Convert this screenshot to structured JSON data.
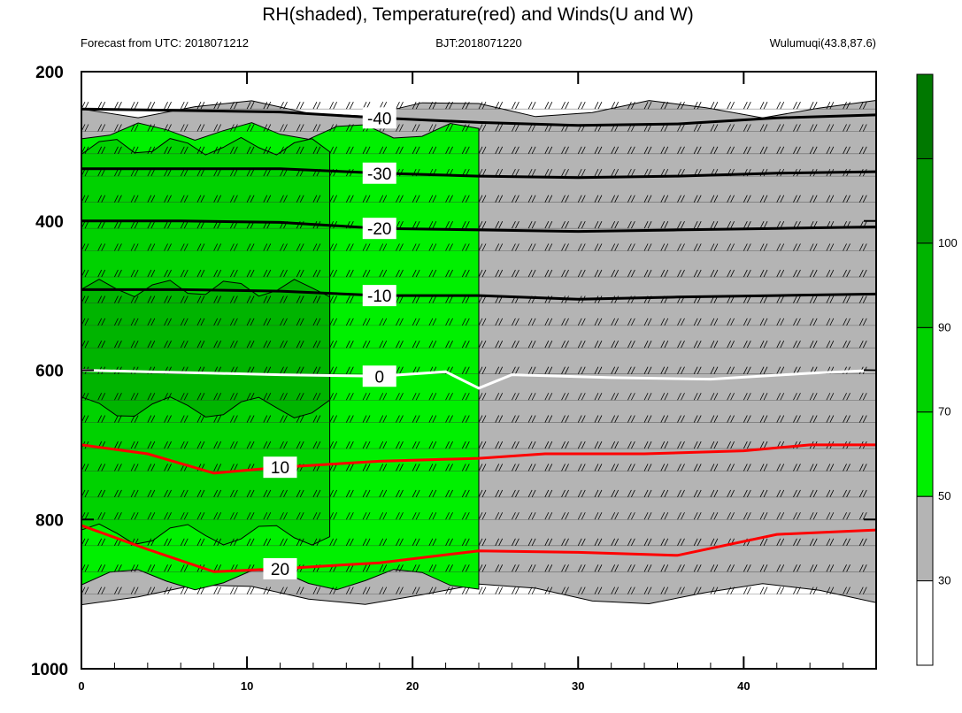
{
  "chart_data": {
    "type": "contour",
    "title": "RH(shaded), Temperature(red) and Winds(U and W)",
    "left_subtitle": "Forecast from UTC: 2018071212",
    "center_subtitle": "BJT:2018071220",
    "right_subtitle": "Wulumuqi(43.8,87.6)",
    "x_range": [
      0,
      48
    ],
    "x_ticks": [
      "0",
      "10",
      "20",
      "30",
      "40"
    ],
    "x_tick_values": [
      0,
      10,
      20,
      30,
      40
    ],
    "y_range": [
      200,
      1000
    ],
    "y_inverted": true,
    "y_ticks": [
      "200",
      "400",
      "600",
      "800",
      "1000"
    ],
    "y_tick_values": [
      200,
      400,
      600,
      800,
      1000
    ],
    "colorbar": {
      "levels": [
        30,
        50,
        70,
        90,
        100
      ],
      "labels": [
        "30",
        "50",
        "70",
        "90",
        "100"
      ],
      "colors": [
        "#ffffff",
        "#b4b4b4",
        "#00f000",
        "#00d200",
        "#00b400",
        "#009600",
        "#007800"
      ]
    },
    "rh_regions": [
      {
        "level": "30-50",
        "color": "#b4b4b4",
        "x": [
          0,
          48
        ],
        "y": [
          250,
          900
        ]
      },
      {
        "level": "50-70",
        "color": "#00f000",
        "x": [
          0,
          24
        ],
        "y": [
          280,
          880
        ]
      },
      {
        "level": "70-90",
        "color": "#00d200",
        "x": [
          0,
          15
        ],
        "y": [
          300,
          820
        ]
      },
      {
        "level": "90-100",
        "color": "#00b400",
        "x": [
          0,
          15
        ],
        "y": [
          490,
          650
        ]
      }
    ],
    "temperature_contours": [
      {
        "value": -40,
        "color": "#000000",
        "points": [
          [
            0,
            250
          ],
          [
            6,
            252
          ],
          [
            12,
            254
          ],
          [
            18,
            262
          ],
          [
            24,
            268
          ],
          [
            30,
            272
          ],
          [
            36,
            270
          ],
          [
            42,
            262
          ],
          [
            48,
            258
          ]
        ]
      },
      {
        "value": -30,
        "color": "#000000",
        "points": [
          [
            0,
            330
          ],
          [
            6,
            330
          ],
          [
            12,
            330
          ],
          [
            18,
            336
          ],
          [
            24,
            340
          ],
          [
            30,
            342
          ],
          [
            36,
            340
          ],
          [
            42,
            336
          ],
          [
            48,
            334
          ]
        ]
      },
      {
        "value": -20,
        "color": "#000000",
        "points": [
          [
            0,
            400
          ],
          [
            6,
            400
          ],
          [
            12,
            402
          ],
          [
            18,
            410
          ],
          [
            24,
            412
          ],
          [
            30,
            414
          ],
          [
            36,
            412
          ],
          [
            42,
            410
          ],
          [
            48,
            408
          ]
        ]
      },
      {
        "value": -10,
        "color": "#000000",
        "points": [
          [
            0,
            492
          ],
          [
            6,
            492
          ],
          [
            12,
            494
          ],
          [
            18,
            500
          ],
          [
            24,
            500
          ],
          [
            30,
            505
          ],
          [
            36,
            502
          ],
          [
            42,
            500
          ],
          [
            48,
            498
          ]
        ]
      },
      {
        "value": 0,
        "color": "#ffffff",
        "points": [
          [
            0,
            600
          ],
          [
            4,
            602
          ],
          [
            8,
            604
          ],
          [
            12,
            606
          ],
          [
            18,
            608
          ],
          [
            22,
            602
          ],
          [
            24,
            624
          ],
          [
            26,
            606
          ],
          [
            32,
            610
          ],
          [
            38,
            612
          ],
          [
            44,
            604
          ],
          [
            48,
            600
          ]
        ]
      },
      {
        "value": 10,
        "color": "#ff0000",
        "points": [
          [
            0,
            700
          ],
          [
            4,
            712
          ],
          [
            8,
            738
          ],
          [
            12,
            730
          ],
          [
            18,
            722
          ],
          [
            24,
            718
          ],
          [
            28,
            712
          ],
          [
            34,
            712
          ],
          [
            40,
            708
          ],
          [
            44,
            700
          ],
          [
            48,
            700
          ]
        ]
      },
      {
        "value": 20,
        "color": "#ff0000",
        "points": [
          [
            0,
            808
          ],
          [
            4,
            840
          ],
          [
            8,
            870
          ],
          [
            12,
            866
          ],
          [
            18,
            858
          ],
          [
            24,
            842
          ],
          [
            30,
            844
          ],
          [
            36,
            848
          ],
          [
            42,
            820
          ],
          [
            48,
            814
          ]
        ]
      }
    ],
    "contour_labels": [
      "-40",
      "-30",
      "-20",
      "-10",
      "0",
      "10",
      "20"
    ],
    "wind_levels": [
      250,
      280,
      310,
      340,
      375,
      410,
      440,
      475,
      510,
      540,
      570,
      605,
      640,
      670,
      705,
      735,
      770,
      800,
      835,
      870,
      900
    ]
  }
}
